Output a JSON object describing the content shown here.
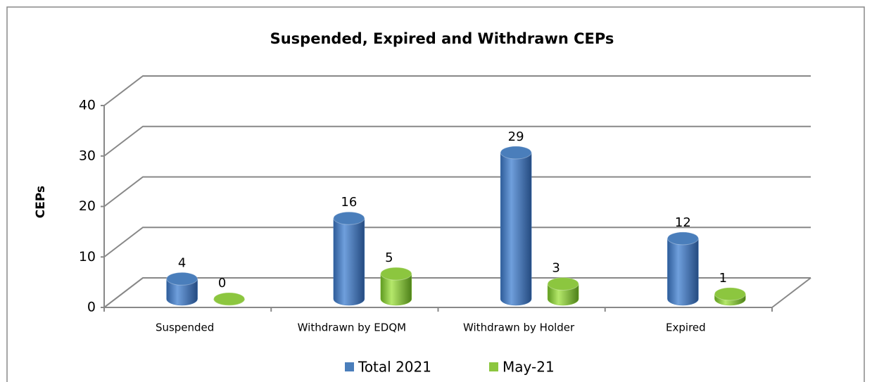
{
  "chart_data": {
    "type": "bar3d",
    "title": "Suspended, Expired and Withdrawn CEPs",
    "y_label": "CEPs",
    "categories": [
      "Suspended",
      "Withdrawn by EDQM",
      "Withdrawn by Holder",
      "Expired"
    ],
    "series": [
      {
        "name": "Total 2021",
        "color": "#4a7ebb",
        "values": [
          4,
          16,
          29,
          12
        ]
      },
      {
        "name": "May-21",
        "color": "#8cc63f",
        "values": [
          0,
          5,
          3,
          1
        ]
      }
    ],
    "ylim": [
      0,
      40
    ],
    "yticks": [
      0,
      10,
      20,
      30,
      40
    ],
    "grid": true,
    "legend": "bottom"
  }
}
